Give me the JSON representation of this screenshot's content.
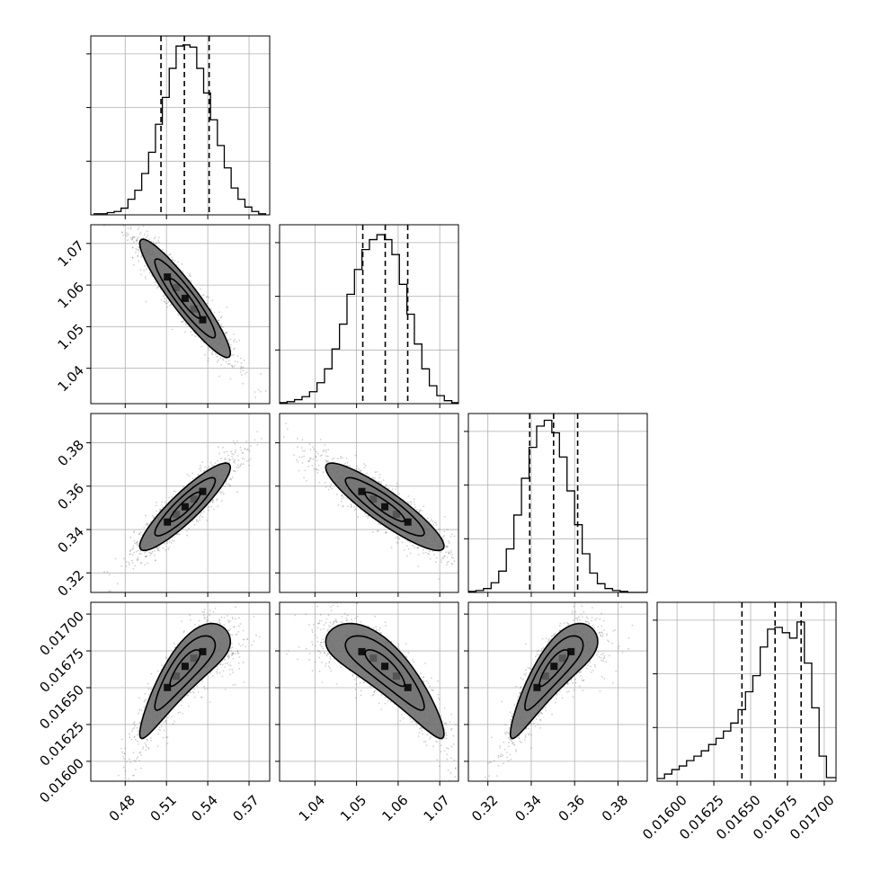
{
  "chart_data": {
    "type": "corner",
    "title": "",
    "grid": true,
    "colors": {
      "line": "#000000",
      "grid": "#b0b0b0",
      "points": "#777777",
      "background": "#ffffff"
    },
    "parameters": [
      {
        "index": 0,
        "label": "",
        "range": [
          0.455,
          0.585
        ],
        "ticks": [
          0.48,
          0.51,
          0.54,
          0.57
        ],
        "tick_labels": [
          "0.48",
          "0.51",
          "0.54",
          "0.57"
        ],
        "quantiles": [
          0.506,
          0.523,
          0.541
        ]
      },
      {
        "index": 1,
        "label": "",
        "range": [
          1.0315,
          1.0745
        ],
        "ticks": [
          1.04,
          1.05,
          1.06,
          1.07
        ],
        "tick_labels": [
          "1.04",
          "1.05",
          "1.06",
          "1.07"
        ],
        "quantiles": [
          1.0515,
          1.0569,
          1.0623
        ]
      },
      {
        "index": 2,
        "label": "",
        "range": [
          0.311,
          0.3935
        ],
        "ticks": [
          0.32,
          0.34,
          0.36,
          0.38
        ],
        "tick_labels": [
          "0.32",
          "0.34",
          "0.36",
          "0.38"
        ],
        "quantiles": [
          0.3393,
          0.3503,
          0.3614
        ]
      },
      {
        "index": 3,
        "label": "",
        "range": [
          0.015865,
          0.01708
        ],
        "ticks": [
          0.016,
          0.01625,
          0.0165,
          0.01675,
          0.017
        ],
        "tick_labels": [
          "0.01600",
          "0.01625",
          "0.01650",
          "0.01675",
          "0.01700"
        ],
        "quantiles": [
          0.016441,
          0.016666,
          0.016843
        ]
      }
    ],
    "histograms": [
      {
        "param": 0,
        "bins": [
          0.457,
          0.462,
          0.467,
          0.472,
          0.477,
          0.482,
          0.487,
          0.492,
          0.497,
          0.502,
          0.507,
          0.512,
          0.517,
          0.522,
          0.527,
          0.532,
          0.537,
          0.542,
          0.547,
          0.552,
          0.557,
          0.562,
          0.567,
          0.572,
          0.577,
          0.582
        ],
        "counts": [
          1,
          1,
          2,
          3,
          6,
          14,
          22,
          37,
          56,
          81,
          105,
          131,
          151,
          152,
          150,
          131,
          109,
          85,
          62,
          42,
          24,
          14,
          7,
          3,
          1,
          0
        ],
        "max_count": 160
      },
      {
        "param": 1,
        "bins": [
          1.0315,
          1.0333,
          1.0351,
          1.0369,
          1.0387,
          1.0405,
          1.0423,
          1.0441,
          1.0459,
          1.0477,
          1.0495,
          1.0513,
          1.0531,
          1.0549,
          1.0567,
          1.0585,
          1.0603,
          1.0621,
          1.0639,
          1.0657,
          1.0675,
          1.0693,
          1.0711,
          1.0729,
          1.0745
        ],
        "counts": [
          1,
          2,
          4,
          7,
          12,
          21,
          35,
          55,
          80,
          110,
          135,
          155,
          165,
          170,
          165,
          150,
          120,
          90,
          60,
          35,
          18,
          8,
          3,
          1
        ],
        "max_count": 180
      },
      {
        "param": 2,
        "bins": [
          0.311,
          0.3145,
          0.318,
          0.3215,
          0.325,
          0.3285,
          0.332,
          0.3355,
          0.339,
          0.3425,
          0.346,
          0.3495,
          0.353,
          0.3565,
          0.36,
          0.3635,
          0.367,
          0.3705,
          0.374,
          0.3775,
          0.381,
          0.3845,
          0.388,
          0.3915,
          0.3935
        ],
        "counts": [
          1,
          2,
          4,
          10,
          22,
          45,
          80,
          118,
          150,
          172,
          178,
          165,
          140,
          105,
          70,
          40,
          20,
          9,
          4,
          2,
          1,
          0,
          0,
          0
        ],
        "max_count": 185
      },
      {
        "param": 3,
        "bins": [
          0.015865,
          0.015915,
          0.015965,
          0.016015,
          0.016065,
          0.016115,
          0.016165,
          0.016215,
          0.016265,
          0.016315,
          0.016365,
          0.016415,
          0.016465,
          0.016515,
          0.016565,
          0.016615,
          0.016665,
          0.016715,
          0.016765,
          0.016815,
          0.016865,
          0.016915,
          0.016965,
          0.017015,
          0.01708
        ],
        "counts": [
          3,
          8,
          13,
          17,
          23,
          28,
          34,
          41,
          48,
          56,
          65,
          80,
          100,
          118,
          150,
          170,
          172,
          166,
          160,
          178,
          132,
          82,
          28,
          4
        ],
        "max_count": 200
      }
    ],
    "pairs": [
      {
        "x": 0,
        "y": 1,
        "center": [
          0.5235,
          1.0568
        ],
        "sx": 0.0183,
        "sy": 0.0079,
        "rho": -0.93,
        "levels": [
          0.6,
          1.2,
          1.8
        ]
      },
      {
        "x": 0,
        "y": 2,
        "center": [
          0.5235,
          0.3505
        ],
        "sx": 0.0183,
        "sy": 0.0112,
        "rho": 0.9,
        "levels": [
          0.6,
          1.2,
          1.8
        ]
      },
      {
        "x": 1,
        "y": 2,
        "center": [
          1.0568,
          0.3505
        ],
        "sx": 0.0079,
        "sy": 0.0112,
        "rho": -0.9,
        "levels": [
          0.6,
          1.2,
          1.8
        ]
      },
      {
        "x": 0,
        "y": 3,
        "center": [
          0.5235,
          0.016645
        ],
        "sx": 0.0183,
        "sy": 0.000205,
        "rho": 0.85,
        "curve": 4.5e-05,
        "levels": [
          0.6,
          1.2,
          1.8
        ]
      },
      {
        "x": 1,
        "y": 3,
        "center": [
          1.0568,
          0.016645
        ],
        "sx": 0.0079,
        "sy": 0.000205,
        "rho": -0.85,
        "curve": 4.5e-05,
        "levels": [
          0.6,
          1.2,
          1.8
        ]
      },
      {
        "x": 2,
        "y": 3,
        "center": [
          0.3505,
          0.016645
        ],
        "sx": 0.0112,
        "sy": 0.000205,
        "rho": 0.85,
        "curve": 4.5e-05,
        "levels": [
          0.6,
          1.2,
          1.8
        ]
      }
    ]
  }
}
